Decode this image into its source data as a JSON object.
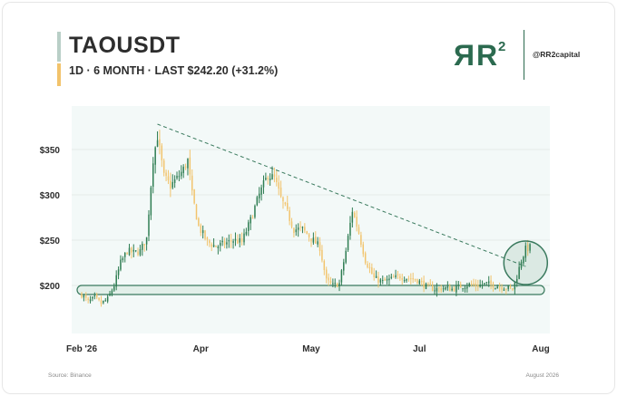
{
  "header": {
    "title": "TAOUSDT",
    "subtitle": "1D · 6 MONTH · LAST $242.20 (+31.2%)",
    "logo_text": "RR²",
    "handle": "@RR2capital"
  },
  "footer": {
    "source": "Source: Binance",
    "date": "August 2026"
  },
  "colors": {
    "bull": "#2e7d52",
    "bear": "#f2c46d",
    "plot_bg": "#f3f9f8",
    "trendline": "#3a7a5e",
    "support_band": "#e2efe9",
    "accent_green": "#2b6a4f",
    "accent_gold": "#f2c36b"
  },
  "chart_data": {
    "type": "candlestick",
    "title": "TAOUSDT",
    "y_tick_labels": [
      "$200",
      "$250",
      "$300",
      "$350"
    ],
    "y_ticks": [
      200,
      250,
      300,
      350
    ],
    "x_tick_labels": [
      "Feb '26",
      "Apr",
      "May",
      "Jul",
      "Aug"
    ],
    "x_tick_days": [
      0,
      55,
      106,
      156,
      212
    ],
    "x_range_days": [
      0,
      212
    ],
    "ylim": [
      147,
      398
    ],
    "grid": "horizontal",
    "last_price": 242.2,
    "change_pct": 31.2,
    "anchor_prices": [
      [
        0,
        190
      ],
      [
        3,
        182
      ],
      [
        6,
        186
      ],
      [
        9,
        180
      ],
      [
        12,
        185
      ],
      [
        15,
        200
      ],
      [
        18,
        225
      ],
      [
        21,
        238
      ],
      [
        24,
        236
      ],
      [
        27,
        238
      ],
      [
        30,
        252
      ],
      [
        33,
        340
      ],
      [
        35,
        365
      ],
      [
        38,
        320
      ],
      [
        41,
        310
      ],
      [
        44,
        318
      ],
      [
        47,
        328
      ],
      [
        49,
        338
      ],
      [
        51,
        300
      ],
      [
        54,
        265
      ],
      [
        58,
        248
      ],
      [
        62,
        243
      ],
      [
        66,
        246
      ],
      [
        70,
        250
      ],
      [
        74,
        248
      ],
      [
        78,
        272
      ],
      [
        82,
        300
      ],
      [
        86,
        322
      ],
      [
        89,
        318
      ],
      [
        92,
        296
      ],
      [
        95,
        280
      ],
      [
        98,
        262
      ],
      [
        102,
        262
      ],
      [
        106,
        252
      ],
      [
        110,
        242
      ],
      [
        113,
        205
      ],
      [
        116,
        200
      ],
      [
        119,
        202
      ],
      [
        122,
        238
      ],
      [
        125,
        283
      ],
      [
        128,
        258
      ],
      [
        131,
        228
      ],
      [
        135,
        208
      ],
      [
        139,
        204
      ],
      [
        143,
        207
      ],
      [
        147,
        210
      ],
      [
        151,
        208
      ],
      [
        155,
        206
      ],
      [
        159,
        199
      ],
      [
        163,
        196
      ],
      [
        167,
        197
      ],
      [
        171,
        196
      ],
      [
        175,
        199
      ],
      [
        179,
        201
      ],
      [
        183,
        200
      ],
      [
        187,
        202
      ],
      [
        191,
        200
      ],
      [
        195,
        198
      ],
      [
        199,
        196
      ],
      [
        201,
        210
      ],
      [
        203,
        228
      ],
      [
        205,
        240
      ],
      [
        207,
        242
      ]
    ],
    "trendline": {
      "from": [
        35,
        378
      ],
      "to": [
        205,
        221
      ]
    },
    "support_zone": {
      "center": 195,
      "low": 190,
      "high": 200,
      "from_day": 0,
      "to_day": 209
    },
    "highlight_circle": {
      "day": 205,
      "price": 225
    }
  }
}
